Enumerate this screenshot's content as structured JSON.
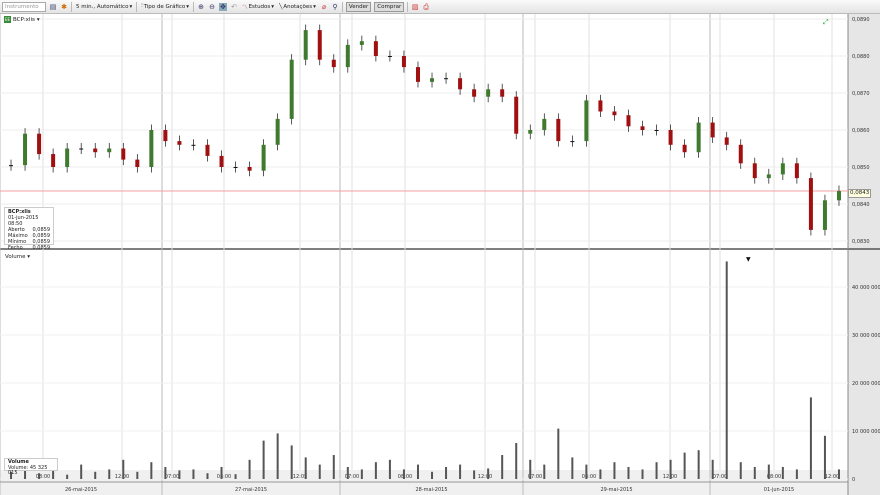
{
  "toolbar": {
    "instrument_placeholder": "Instrumento",
    "interval": "5 min., Automático",
    "chart_type": "Tipo de Gráfico",
    "studies": "Estudos",
    "annotations": "Anotações",
    "sell": "Vender",
    "buy": "Comprar"
  },
  "symbol": {
    "badge": "EE",
    "name": "BCP:xlis"
  },
  "legend": {
    "title": "BCP:xlis",
    "datetime": "01-jun-2015 08:50",
    "rows": [
      {
        "label": "Aberto",
        "value": "0,0859"
      },
      {
        "label": "Máximo",
        "value": "0,0859"
      },
      {
        "label": "Mínimo",
        "value": "0,0859"
      },
      {
        "label": "Fecho",
        "value": "0,0859"
      }
    ]
  },
  "volume_pane": {
    "title": "Volume",
    "legend_title": "Volume",
    "legend_label": "Volume:",
    "legend_value": "45 325 015"
  },
  "price_tag": "0,0843",
  "colors": {
    "up": "#3f7a2f",
    "down": "#a01010",
    "neutral": "#111111",
    "current_line": "#f0a0a0"
  },
  "chart_data": [
    {
      "type": "candlestick",
      "ylim": [
        0.083,
        0.089
      ],
      "y_ticks": [
        "0,0890",
        "0,0880",
        "0,0870",
        "0,0860",
        "0,0850",
        "0,0840",
        "0,0830"
      ],
      "closes": [
        0.08505,
        0.0859,
        0.08535,
        0.085,
        0.0855,
        0.0855,
        0.0854,
        0.0855,
        0.0852,
        0.085,
        0.086,
        0.0857,
        0.0856,
        0.0856,
        0.0853,
        0.085,
        0.085,
        0.0849,
        0.0856,
        0.0863,
        0.0879,
        0.0887,
        0.0879,
        0.0877,
        0.0883,
        0.0884,
        0.088,
        0.088,
        0.0877,
        0.0873,
        0.0874,
        0.0874,
        0.0871,
        0.0869,
        0.0871,
        0.0869,
        0.0859,
        0.086,
        0.0863,
        0.0857,
        0.0857,
        0.0868,
        0.0865,
        0.0864,
        0.0861,
        0.086,
        0.086,
        0.0856,
        0.0854,
        0.0862,
        0.0858,
        0.0856,
        0.0851,
        0.0847,
        0.0848,
        0.0851,
        0.0847,
        0.0833,
        0.0841,
        0.08435
      ]
    },
    {
      "type": "bar",
      "title": "Volume",
      "ylim": [
        0,
        47000000
      ],
      "y_ticks": [
        "40 000 000",
        "30 000 000",
        "20 000 000",
        "10 000 000",
        "0"
      ],
      "values": [
        1500000,
        2200000,
        1200000,
        1800000,
        900000,
        3000000,
        1500000,
        2000000,
        4000000,
        1500000,
        3500000,
        2500000,
        1800000,
        2000000,
        1200000,
        2500000,
        1000000,
        4000000,
        8000000,
        9500000,
        7000000,
        4500000,
        3000000,
        5000000,
        2500000,
        2000000,
        3500000,
        4000000,
        2000000,
        3000000,
        1500000,
        2500000,
        3000000,
        1800000,
        2200000,
        5000000,
        7500000,
        4000000,
        3000000,
        10500000,
        4500000,
        3000000,
        2000000,
        3500000,
        2500000,
        2000000,
        3500000,
        4000000,
        5500000,
        6000000,
        4000000,
        45325015,
        3500000,
        2500000,
        3000000,
        2500000,
        2000000,
        17000000,
        9000000,
        2000000
      ]
    },
    {
      "type": "time_axis",
      "time_labels": [
        "08:00",
        "12:00",
        "07:00",
        "08:00",
        "12:05",
        "07:00",
        "08:00",
        "12:00",
        "07:00",
        "08:00",
        "12:00",
        "07:00",
        "08:00",
        "12:00"
      ],
      "date_labels": [
        "26-mai-2015",
        "27-mai-2015",
        "28-mai-2015",
        "29-mai-2015",
        "01-jun-2015"
      ]
    }
  ]
}
